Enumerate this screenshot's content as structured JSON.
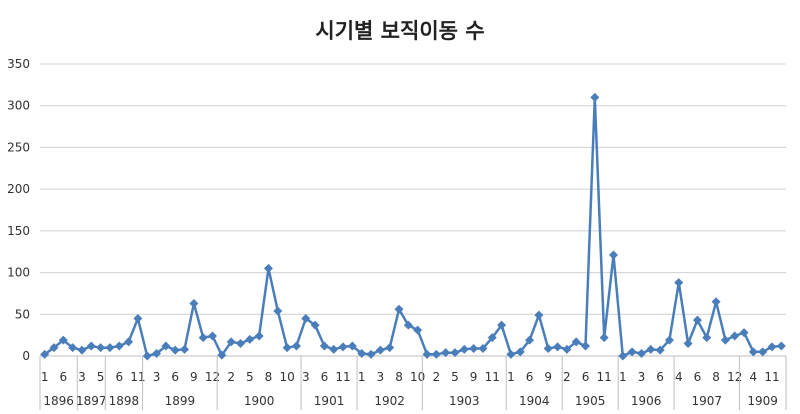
{
  "chart_data": {
    "type": "line",
    "title": "시기별 보직이동 수",
    "xlabel": "",
    "ylabel": "",
    "ylim": [
      0,
      350
    ],
    "yticks": [
      0,
      50,
      100,
      150,
      200,
      250,
      300,
      350
    ],
    "grid": true,
    "legend": "none",
    "series_color": "#4A7EBB",
    "marker": "diamond",
    "groups": [
      {
        "year": "1896",
        "months": [
          "1",
          "",
          "6",
          ""
        ]
      },
      {
        "year": "1897",
        "months": [
          "3",
          "",
          "5"
        ]
      },
      {
        "year": "1898",
        "months": [
          "",
          "6",
          "",
          "11"
        ]
      },
      {
        "year": "1899",
        "months": [
          "",
          "3",
          "",
          "6",
          "",
          "9",
          "",
          "12"
        ]
      },
      {
        "year": "1900",
        "months": [
          "",
          "2",
          "",
          "5",
          "",
          "8",
          "",
          "10",
          ""
        ]
      },
      {
        "year": "1901",
        "months": [
          "3",
          "",
          "6",
          "",
          "11",
          ""
        ]
      },
      {
        "year": "1902",
        "months": [
          "1",
          "",
          "3",
          "",
          "8",
          "",
          "10"
        ]
      },
      {
        "year": "1903",
        "months": [
          "",
          "2",
          "",
          "5",
          "",
          "9",
          "",
          "11",
          ""
        ]
      },
      {
        "year": "1904",
        "months": [
          "1",
          "",
          "6",
          "",
          "9",
          ""
        ]
      },
      {
        "year": "1905",
        "months": [
          "2",
          "",
          "6",
          "",
          "11",
          ""
        ]
      },
      {
        "year": "1906",
        "months": [
          "1",
          "",
          "3",
          "",
          "6",
          ""
        ]
      },
      {
        "year": "1907",
        "months": [
          "4",
          "",
          "6",
          "",
          "8",
          "",
          "12"
        ]
      },
      {
        "year": "1909",
        "months": [
          "",
          "4",
          "",
          "11",
          ""
        ]
      }
    ],
    "values": [
      2,
      10,
      19,
      10,
      7,
      12,
      10,
      10,
      12,
      17,
      45,
      0,
      3,
      12,
      7,
      8,
      63,
      22,
      24,
      1,
      17,
      15,
      20,
      24,
      105,
      54,
      10,
      12,
      45,
      37,
      12,
      8,
      11,
      12,
      3,
      2,
      7,
      10,
      56,
      37,
      31,
      2,
      2,
      4,
      4,
      8,
      9,
      9,
      22,
      37,
      2,
      5,
      19,
      49,
      9,
      11,
      8,
      17,
      12,
      310,
      22,
      121,
      0,
      5,
      3,
      8,
      7,
      19,
      88,
      15,
      43,
      22,
      65,
      19,
      24,
      28,
      5,
      5,
      11,
      12
    ]
  }
}
